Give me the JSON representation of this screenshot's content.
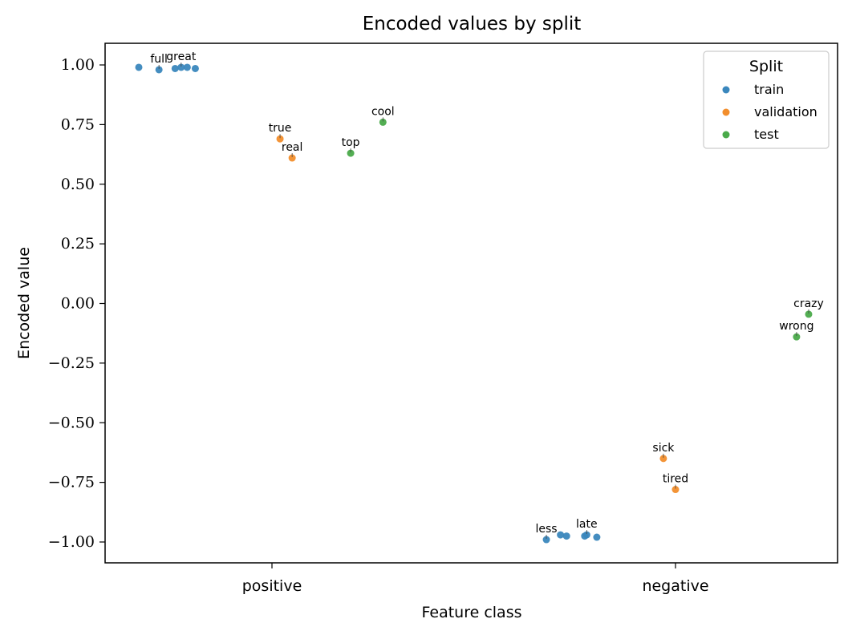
{
  "chart_data": {
    "type": "scatter",
    "title": "Encoded values by split",
    "xlabel": "Feature class",
    "ylabel": "Encoded value",
    "categories": [
      "positive",
      "negative"
    ],
    "y_ticks": [
      1.0,
      0.75,
      0.5,
      0.25,
      0.0,
      -0.25,
      -0.5,
      -0.75,
      -1.0
    ],
    "y_tick_labels": [
      "1.00",
      "0.75",
      "0.50",
      "0.25",
      "0.00",
      "−0.25",
      "−0.50",
      "−0.75",
      "−1.00"
    ],
    "ylim": [
      -1.09,
      1.09
    ],
    "grid": false,
    "legend": {
      "title": "Split",
      "placement": "top-right"
    },
    "series": [
      {
        "name": "train",
        "color": "#3a87bd",
        "points": [
          {
            "x": -0.33,
            "y": 0.99,
            "label": ""
          },
          {
            "x": -0.28,
            "y": 0.98,
            "label": "full"
          },
          {
            "x": -0.24,
            "y": 0.985,
            "label": ""
          },
          {
            "x": -0.225,
            "y": 0.99,
            "label": "great"
          },
          {
            "x": -0.21,
            "y": 0.99,
            "label": ""
          },
          {
            "x": -0.19,
            "y": 0.985,
            "label": ""
          },
          {
            "x": 0.68,
            "y": -0.99,
            "label": "less"
          },
          {
            "x": 0.715,
            "y": -0.97,
            "label": ""
          },
          {
            "x": 0.73,
            "y": -0.975,
            "label": ""
          },
          {
            "x": 0.775,
            "y": -0.975,
            "label": ""
          },
          {
            "x": 0.78,
            "y": -0.97,
            "label": "late"
          },
          {
            "x": 0.805,
            "y": -0.98,
            "label": ""
          }
        ]
      },
      {
        "name": "validation",
        "color": "#f28e2c",
        "points": [
          {
            "x": 0.02,
            "y": 0.69,
            "label": "true"
          },
          {
            "x": 0.05,
            "y": 0.61,
            "label": "real"
          },
          {
            "x": 0.97,
            "y": -0.65,
            "label": "sick"
          },
          {
            "x": 1.0,
            "y": -0.78,
            "label": "tired"
          }
        ]
      },
      {
        "name": "test",
        "color": "#4aaa4a",
        "points": [
          {
            "x": 0.195,
            "y": 0.63,
            "label": "top"
          },
          {
            "x": 0.275,
            "y": 0.76,
            "label": "cool"
          },
          {
            "x": 1.3,
            "y": -0.14,
            "label": "wrong"
          },
          {
            "x": 1.33,
            "y": -0.045,
            "label": "crazy"
          }
        ]
      }
    ]
  }
}
